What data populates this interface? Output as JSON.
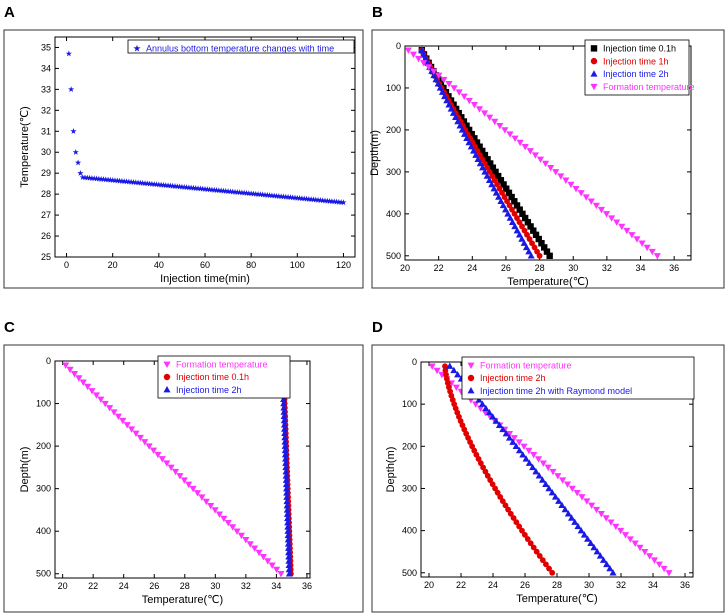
{
  "chart_data": [
    {
      "panel": "A",
      "type": "scatter",
      "title": "",
      "xlabel": "Injection time(min)",
      "ylabel": "Temperature(℃)",
      "xlim": [
        -5,
        125
      ],
      "ylim": [
        25,
        35.5
      ],
      "xticks": [
        0,
        20,
        40,
        60,
        80,
        100,
        120
      ],
      "yticks": [
        25,
        26,
        27,
        28,
        29,
        30,
        31,
        32,
        33,
        34,
        35
      ],
      "grid": false,
      "legend_position": "top-right",
      "series": [
        {
          "name": "Annulus bottom temperature changes with time",
          "color": "#1a1ae6",
          "marker": "star",
          "x": [
            1,
            2,
            3,
            4,
            5,
            6,
            7,
            120
          ],
          "y": [
            34.7,
            33.0,
            31.0,
            30.0,
            29.5,
            29.0,
            28.8,
            27.6
          ],
          "interpolate": "linear-tail",
          "sample_step": 1
        }
      ]
    },
    {
      "panel": "B",
      "type": "scatter",
      "title": "",
      "xlabel": "Temperature(℃)",
      "ylabel": "Depth(m)",
      "xlim": [
        20,
        37
      ],
      "ylim": [
        0,
        510
      ],
      "y_inverted": true,
      "xticks": [
        20,
        22,
        24,
        26,
        28,
        30,
        32,
        34,
        36
      ],
      "yticks": [
        0,
        100,
        200,
        300,
        400,
        500
      ],
      "grid": false,
      "legend_position": "top-right",
      "series": [
        {
          "name": "Injection time 0.1h",
          "color": "#000000",
          "marker": "square",
          "t0": 21.0,
          "t1": 28.6,
          "curve": 1.05
        },
        {
          "name": "Injection time 1h",
          "color": "#e00000",
          "marker": "circle",
          "t0": 21.0,
          "t1": 28.0,
          "curve": 1.05
        },
        {
          "name": "Injection time 2h",
          "color": "#1a1ae6",
          "marker": "triangle-up",
          "t0": 21.0,
          "t1": 27.5,
          "curve": 1.05
        },
        {
          "name": "Formation temperature",
          "color": "#ff33ff",
          "marker": "triangle-down",
          "t0": 20.2,
          "t1": 35.0,
          "curve": 1.0
        }
      ]
    },
    {
      "panel": "C",
      "type": "scatter",
      "title": "",
      "xlabel": "Temperature(℃)",
      "ylabel": "Depth(m)",
      "xlim": [
        19.5,
        36.2
      ],
      "ylim": [
        0,
        510
      ],
      "y_inverted": true,
      "xticks": [
        20,
        22,
        24,
        26,
        28,
        30,
        32,
        34,
        36
      ],
      "yticks": [
        0,
        100,
        200,
        300,
        400,
        500
      ],
      "grid": false,
      "legend_position": "top-center",
      "series": [
        {
          "name": "Formation temperature",
          "color": "#ff33ff",
          "marker": "triangle-down",
          "t0": 20.2,
          "t1": 34.3,
          "curve": 1.0
        },
        {
          "name": "Injection time 0.1h",
          "color": "#e00000",
          "marker": "circle",
          "t0": 34.45,
          "t1": 34.95,
          "curve": 1.0
        },
        {
          "name": "Injection time 2h",
          "color": "#1a1ae6",
          "marker": "triangle-up",
          "t0": 34.4,
          "t1": 34.85,
          "curve": 1.0
        }
      ]
    },
    {
      "panel": "D",
      "type": "scatter",
      "title": "",
      "xlabel": "Temperature(℃)",
      "ylabel": "Depth(m)",
      "xlim": [
        19.5,
        36.5
      ],
      "ylim": [
        0,
        510
      ],
      "y_inverted": true,
      "xticks": [
        20,
        22,
        24,
        26,
        28,
        30,
        32,
        34,
        36
      ],
      "yticks": [
        0,
        100,
        200,
        300,
        400,
        500
      ],
      "grid": false,
      "legend_position": "top-right",
      "series": [
        {
          "name": "Formation temperature",
          "color": "#ff33ff",
          "marker": "triangle-down",
          "t0": 20.2,
          "t1": 35.0,
          "curve": 1.0
        },
        {
          "name": "Injection time 2h",
          "color": "#e00000",
          "marker": "circle",
          "t0": 21.0,
          "t1": 27.7,
          "curve": 1.45
        },
        {
          "name": "Injection time 2h with Raymond model",
          "color": "#1a1ae6",
          "marker": "triangle-up",
          "t0": 21.3,
          "t1": 31.5,
          "curve": 0.95
        }
      ]
    }
  ]
}
